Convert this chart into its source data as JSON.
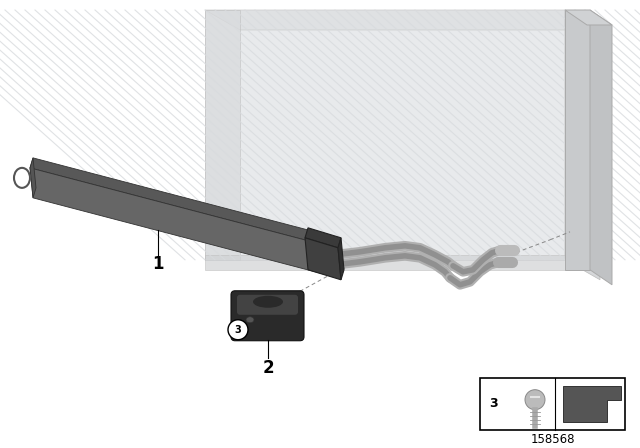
{
  "background_color": "#ffffff",
  "part_number": "158568",
  "cooler_color_top": "#585858",
  "cooler_color_front": "#666666",
  "cooler_color_shadow": "#444444",
  "cooler_end_top": "#3a3a3a",
  "cooler_end_front": "#404040",
  "cooler_end_side": "#303030",
  "radiator_face_color": "#e8eaec",
  "radiator_stripe_color": "#d8dbde",
  "radiator_side_color": "#d0d3d6",
  "radiator_frame_color": "#c8cacc",
  "pipe_outer": "#b0b0b0",
  "pipe_inner": "#909090",
  "grommet_dark": "#2a2a2a",
  "grommet_mid": "#3d3d3d",
  "grommet_highlight": "#555555",
  "label_color": "#000000",
  "dash_color": "#888888",
  "inset_border": "#000000",
  "screw_color": "#aaaaaa",
  "clip_color": "#555555"
}
